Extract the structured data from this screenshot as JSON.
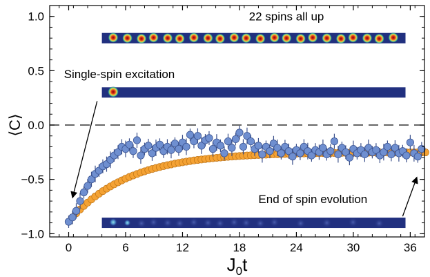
{
  "chart_data": {
    "type": "scatter",
    "xlabel_main": "J",
    "xlabel_sub": "0",
    "xlabel_suffix": "t",
    "ylabel": "⟨C⟩",
    "xlim": [
      -2,
      37.5
    ],
    "ylim": [
      -1.03,
      1.1
    ],
    "xticks": [
      0,
      6,
      12,
      18,
      24,
      30,
      36
    ],
    "xtick_labels": [
      "0",
      "6",
      "12",
      "18",
      "24",
      "30",
      "36"
    ],
    "yticks": [
      -1.0,
      -0.5,
      0.0,
      0.5,
      1.0
    ],
    "ytick_labels": [
      "−1.0",
      "−0.5",
      "0.0",
      "0.5",
      "1.0"
    ],
    "reference_line": {
      "y": 0,
      "style": "dashed"
    },
    "series": [
      {
        "marker": "circle-with-errorbar",
        "color": "#6f8fd0",
        "x": [
          0,
          0.4,
          0.8,
          1.2,
          1.6,
          2.0,
          2.4,
          2.8,
          3.2,
          3.6,
          4.0,
          4.4,
          4.8,
          5.2,
          5.6,
          6.0,
          6.4,
          6.8,
          7.2,
          7.6,
          8.0,
          8.4,
          8.8,
          9.2,
          9.6,
          10.0,
          10.4,
          10.8,
          11.2,
          11.6,
          12.0,
          12.4,
          12.8,
          13.2,
          13.6,
          14.0,
          14.4,
          14.8,
          15.2,
          15.6,
          16.0,
          16.4,
          16.8,
          17.2,
          17.6,
          18.0,
          18.4,
          18.8,
          19.2,
          19.6,
          20.0,
          20.4,
          20.8,
          21.2,
          21.6,
          22.0,
          22.4,
          22.8,
          23.2,
          23.6,
          24.0,
          24.4,
          24.8,
          25.2,
          25.6,
          26.0,
          26.4,
          26.8,
          27.2,
          27.6,
          28.0,
          28.4,
          28.8,
          29.2,
          29.6,
          30.0,
          30.4,
          30.8,
          31.2,
          31.6,
          32.0,
          32.4,
          32.8,
          33.2,
          33.6,
          34.0,
          34.4,
          34.8,
          35.2,
          35.6,
          36.0,
          36.4,
          36.8,
          37.2
        ],
        "y": [
          -0.89,
          -0.85,
          -0.79,
          -0.7,
          -0.62,
          -0.56,
          -0.5,
          -0.45,
          -0.42,
          -0.38,
          -0.36,
          -0.32,
          -0.28,
          -0.25,
          -0.2,
          -0.22,
          -0.18,
          -0.24,
          -0.14,
          -0.28,
          -0.22,
          -0.19,
          -0.26,
          -0.21,
          -0.18,
          -0.24,
          -0.2,
          -0.23,
          -0.17,
          -0.22,
          -0.16,
          -0.2,
          -0.09,
          -0.15,
          -0.1,
          -0.19,
          -0.14,
          -0.12,
          -0.22,
          -0.16,
          -0.19,
          -0.26,
          -0.15,
          -0.21,
          -0.13,
          -0.07,
          -0.2,
          -0.1,
          -0.15,
          -0.22,
          -0.19,
          -0.27,
          -0.2,
          -0.24,
          -0.17,
          -0.21,
          -0.26,
          -0.2,
          -0.24,
          -0.29,
          -0.23,
          -0.26,
          -0.2,
          -0.24,
          -0.28,
          -0.23,
          -0.25,
          -0.21,
          -0.27,
          -0.24,
          -0.15,
          -0.27,
          -0.21,
          -0.25,
          -0.3,
          -0.22,
          -0.26,
          -0.23,
          -0.27,
          -0.21,
          -0.25,
          -0.23,
          -0.28,
          -0.25,
          -0.2,
          -0.27,
          -0.21,
          -0.26,
          -0.24,
          -0.28,
          -0.16,
          -0.26,
          -0.29,
          -0.22
        ]
      },
      {
        "marker": "circle",
        "color": "#f4a234",
        "tau": 6.2,
        "x_step": 0.4,
        "x_max": 37.6,
        "y0": -0.89,
        "y_inf": -0.25
      }
    ],
    "annotations": [
      {
        "text": "22 spins all up",
        "kind": "heatmap-strip",
        "strip_y": 0.8,
        "strip_x": [
          3.5,
          35.5
        ],
        "label_at": [
          19,
          1.0
        ]
      },
      {
        "text": "Single-spin excitation",
        "kind": "heatmap-strip",
        "strip_y": 0.3,
        "strip_x": [
          3.5,
          35.5
        ],
        "label_at": [
          -0.5,
          0.47
        ]
      },
      {
        "text": "End of spin evolution",
        "kind": "heatmap-strip",
        "strip_y": -0.9,
        "strip_x": [
          3.5,
          35.5
        ],
        "label_at": [
          20,
          -0.68
        ]
      }
    ]
  }
}
